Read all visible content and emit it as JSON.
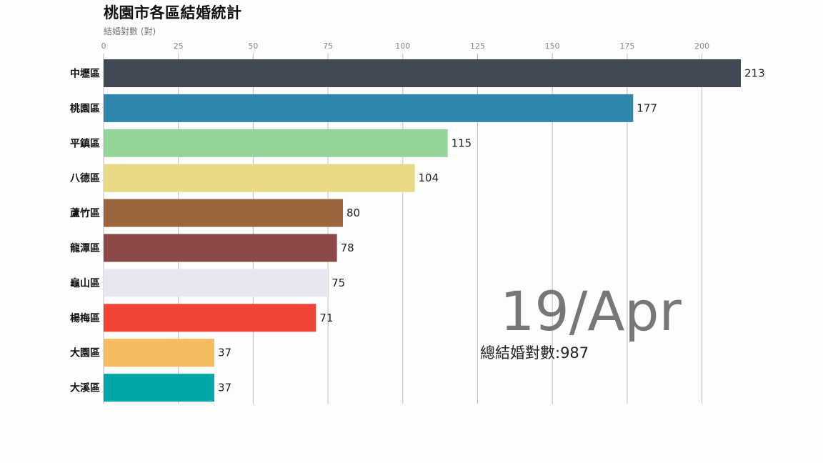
{
  "chart_data": {
    "type": "bar",
    "orientation": "horizontal",
    "title": "桃園市各區結婚統計",
    "xlabel": "結婚對數 (對)",
    "categories": [
      "中壢區",
      "桃園區",
      "平鎮區",
      "八德區",
      "蘆竹區",
      "龍潭區",
      "龜山區",
      "楊梅區",
      "大園區",
      "大溪區"
    ],
    "values": [
      213,
      177,
      115,
      104,
      80,
      78,
      75,
      71,
      37,
      37
    ],
    "colors": [
      "#414a54",
      "#2e86ab",
      "#93d596",
      "#e8d984",
      "#9c663d",
      "#8b4a47",
      "#ebe5ef",
      "#f04436",
      "#f6ba5f",
      "#00a7a7"
    ],
    "xlim": [
      0,
      213
    ],
    "xticks": [
      0,
      25,
      50,
      75,
      100,
      125,
      150,
      175,
      200
    ],
    "grid": true,
    "date": "19/Apr",
    "total_text": "總結婚對數:987"
  }
}
